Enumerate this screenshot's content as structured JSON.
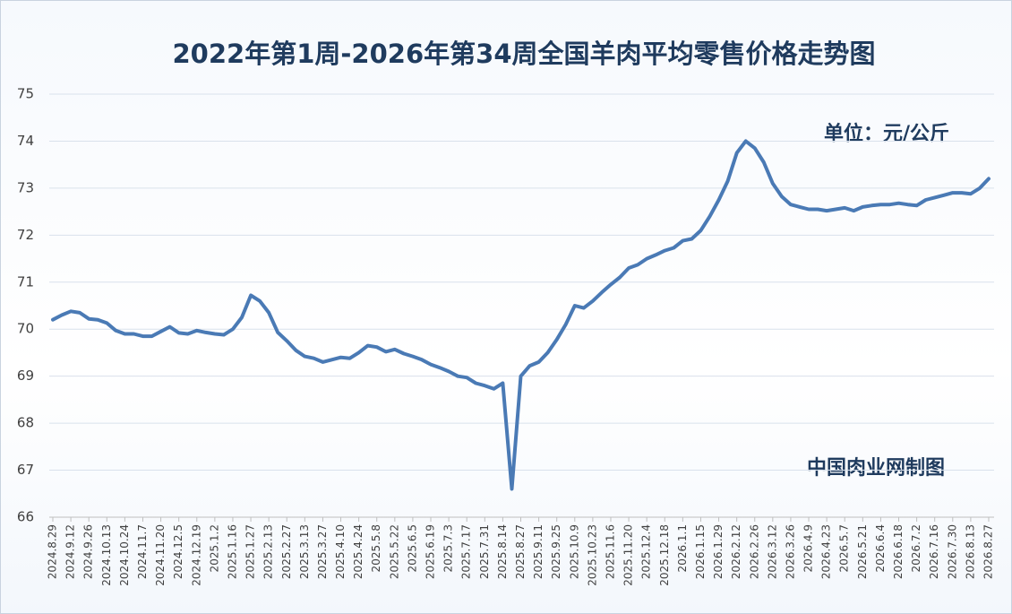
{
  "chart_data": {
    "type": "line",
    "title": "2022年第1周-2026年第34周全国羊肉平均零售价格走势图",
    "annotations": [
      "单位：元/公斤",
      "中国肉业网制图"
    ],
    "categories": [
      "2024.8.29",
      null,
      "2024.9.12",
      null,
      "2024.9.26",
      null,
      "2024.10.13",
      null,
      "2024.10.24",
      null,
      "2024.11.7",
      null,
      "2024.11.20",
      null,
      "2024.12.5",
      null,
      "2024.12.19",
      null,
      "2025.1.2",
      null,
      "2025.1.16",
      null,
      "2025.1.27",
      null,
      "2025.2.13",
      null,
      "2025.2.27",
      null,
      "2025.3.13",
      null,
      "2025.3.27",
      null,
      "2025.4.10",
      null,
      "2025.4.24",
      null,
      "2025.5.8",
      null,
      "2025.5.22",
      null,
      "2025.6.5",
      null,
      "2025.6.19",
      null,
      "2025.7.3",
      null,
      "2025.7.17",
      null,
      "2025.7.31",
      null,
      "2025.8.14",
      null,
      "2025.8.27",
      null,
      "2025.9.11",
      null,
      "2025.9.25",
      null,
      "2025.10.9",
      null,
      "2025.10.23",
      null,
      "2025.11.6",
      null,
      "2025.11.20",
      null,
      "2025.12.4",
      null,
      "2025.12.18",
      null,
      "2026.1.1",
      null,
      "2026.1.15",
      null,
      "2026.1.29",
      null,
      "2026.2.12",
      null,
      "2026.2.26",
      null,
      "2026.3.12",
      null,
      "2026.3.26",
      null,
      "2026.4.9",
      null,
      "2026.4.23",
      null,
      "2026.5.7",
      null,
      "2026.5.21",
      null,
      "2026.6.4",
      null,
      "2026.6.18",
      null,
      "2026.7.2",
      null,
      "2026.7.16",
      null,
      "2026.7.30",
      null,
      "2026.8.13",
      null,
      "2026.8.27"
    ],
    "values": [
      70.2,
      70.3,
      70.38,
      70.35,
      70.22,
      70.2,
      70.13,
      69.97,
      69.9,
      69.9,
      69.85,
      69.85,
      69.95,
      70.05,
      69.92,
      69.9,
      69.97,
      69.93,
      69.9,
      69.88,
      70.0,
      70.25,
      70.72,
      70.6,
      70.35,
      69.93,
      69.75,
      69.55,
      69.42,
      69.38,
      69.3,
      69.35,
      69.4,
      69.38,
      69.5,
      69.65,
      69.62,
      69.52,
      69.57,
      69.48,
      69.42,
      69.35,
      69.25,
      69.18,
      69.1,
      69.0,
      68.97,
      68.85,
      68.8,
      68.73,
      68.85,
      66.6,
      69.0,
      69.22,
      69.3,
      69.5,
      69.78,
      70.1,
      70.5,
      70.45,
      70.6,
      70.78,
      70.95,
      71.1,
      71.3,
      71.37,
      71.5,
      71.58,
      71.67,
      71.73,
      71.88,
      71.92,
      72.1,
      72.4,
      72.75,
      73.15,
      73.75,
      74.0,
      73.85,
      73.55,
      73.1,
      72.82,
      72.65,
      72.6,
      72.55,
      72.55,
      72.52,
      72.55,
      72.58,
      72.52,
      72.6,
      72.63,
      72.65,
      72.65,
      72.68,
      72.65,
      72.63,
      72.75,
      72.8,
      72.85,
      72.9,
      72.9,
      72.88,
      73.0,
      73.2
    ],
    "color": "#4a7ab5",
    "ylim": [
      66,
      75
    ],
    "yticks": [
      66,
      67,
      68,
      69,
      70,
      71,
      72,
      73,
      74,
      75
    ],
    "grid": true
  }
}
